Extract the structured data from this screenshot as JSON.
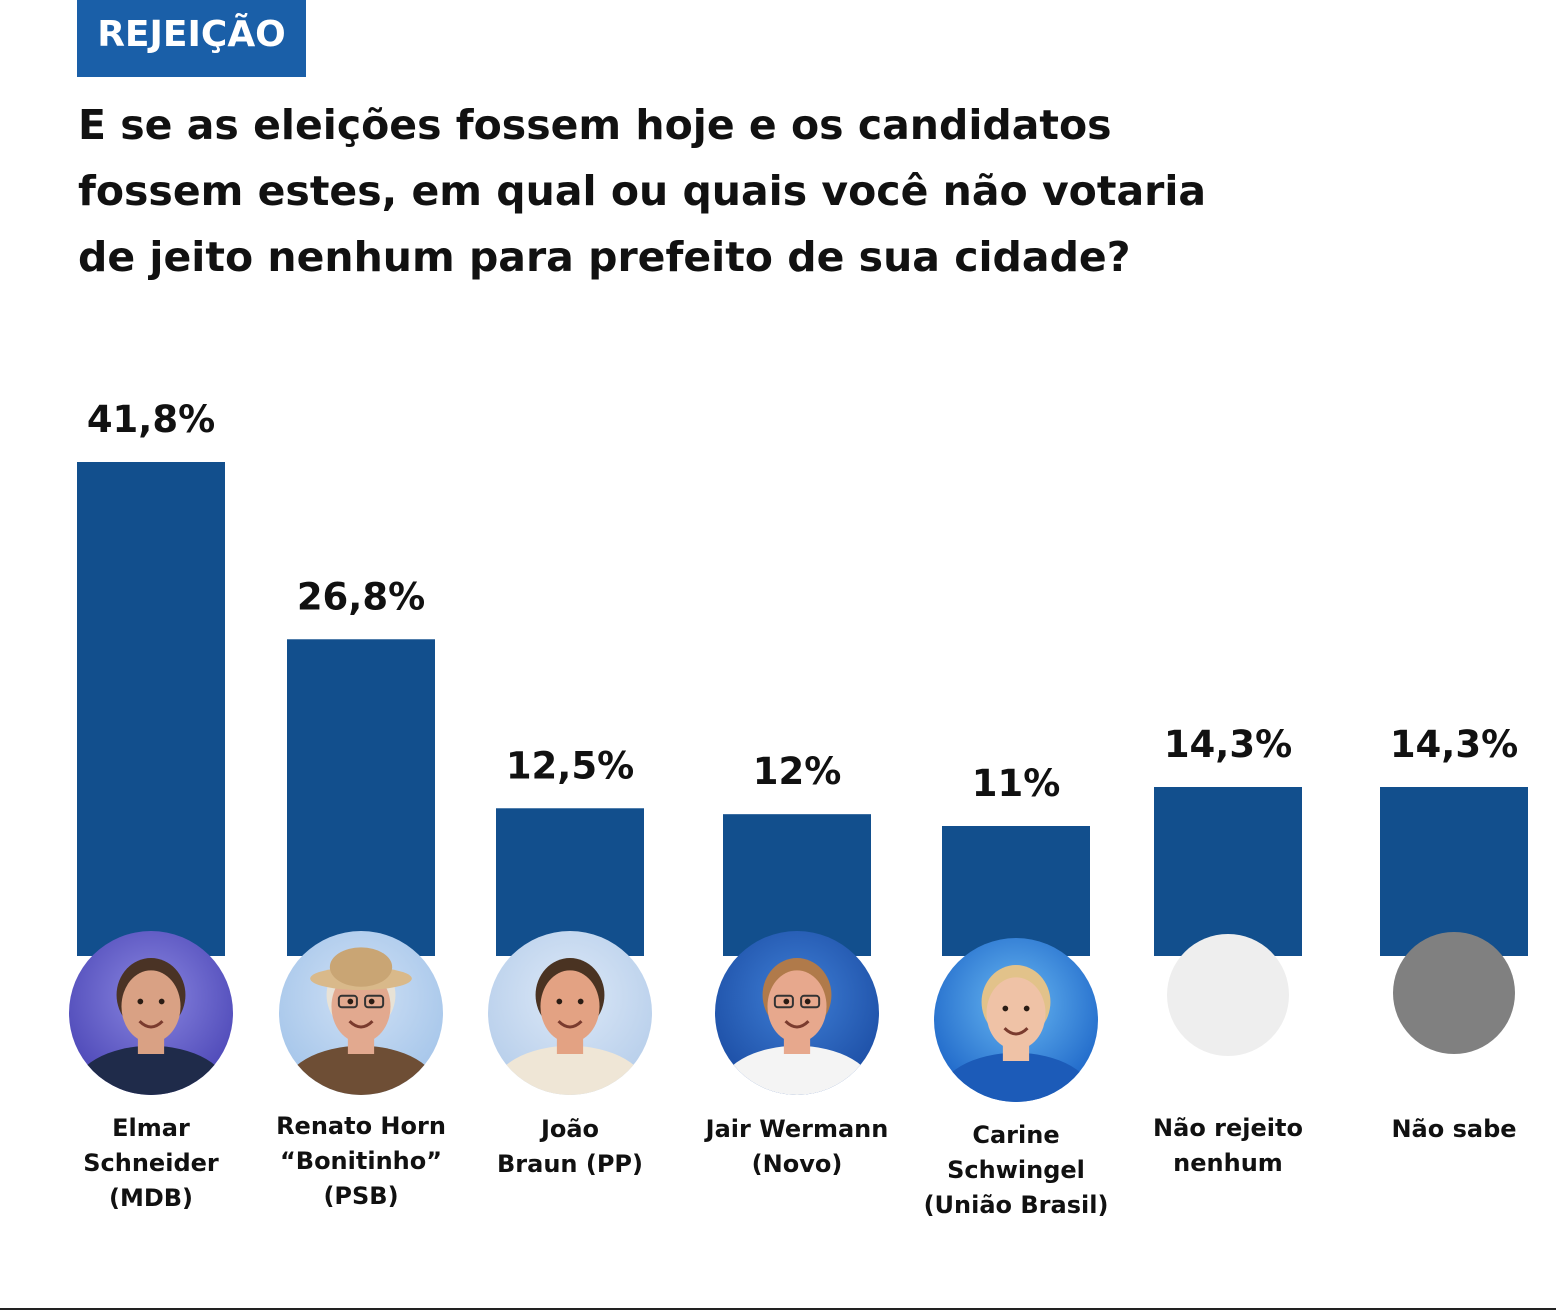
{
  "tag": "REJEIÇÃO",
  "question": {
    "lines": [
      "E se as eleições fossem hoje e os candidatos",
      "fossem estes, em qual ou quais você não votaria",
      "de jeito nenhum para prefeito de sua cidade?"
    ]
  },
  "colors": {
    "bar": "#124f8d",
    "tag": "#1a5fa8",
    "text": "#111111",
    "placeholder_light": "#eeeeee",
    "placeholder_dark": "#808080"
  },
  "chart_data": {
    "type": "bar",
    "title": "E se as eleições fossem hoje e os candidatos fossem estes, em qual ou quais você não votaria de jeito nenhum para prefeito de sua cidade?",
    "xlabel": "",
    "ylabel": "",
    "unit": "%",
    "grid": false,
    "legend": "none",
    "categories": [
      [
        "Elmar",
        "Schneider",
        "(MDB)"
      ],
      [
        "Renato Horn",
        "“Bonitinho”",
        "(PSB)"
      ],
      [
        "João",
        "Braun (PP)"
      ],
      [
        "Jair Wermann",
        "(Novo)"
      ],
      [
        "Carine",
        "Schwingel",
        "(União Brasil)"
      ],
      [
        "Não rejeito",
        "nenhum"
      ],
      [
        "Não sabe"
      ]
    ],
    "values": [
      41.8,
      26.8,
      12.5,
      12,
      11,
      14.3,
      14.3
    ],
    "value_labels": [
      "41,8%",
      "26,8%",
      "12,5%",
      "12%",
      "11%",
      "14,3%",
      "14,3%"
    ],
    "photos": [
      "candidate-photo-elmar-schneider",
      "candidate-photo-renato-horn",
      "candidate-photo-joao-braun",
      "candidate-photo-jair-wermann",
      "candidate-photo-carine-schwingel",
      "placeholder-circle-light",
      "placeholder-circle-dark"
    ]
  }
}
